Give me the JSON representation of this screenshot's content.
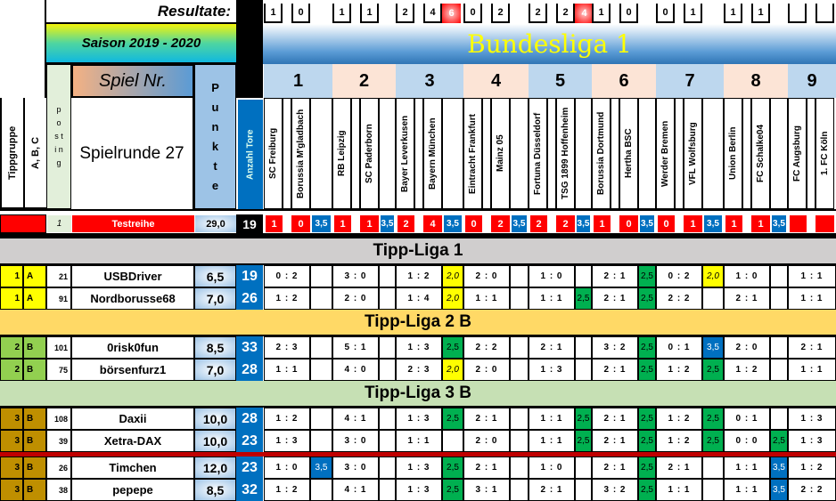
{
  "header": {
    "resultate": "Resultate:",
    "saison": "Saison 2019 - 2020",
    "liga": "Bundesliga 1",
    "spiel_nr": "Spiel Nr.",
    "spielrunde": "Spielrunde 27",
    "col_tippgruppe": "Tippgruppe",
    "col_abc": "A, B, C",
    "col_posting": "p o s t i n g",
    "col_punkte": "P u n k t e",
    "col_tore": "Anzahl Tore"
  },
  "colors": {
    "yellow": "#ffff00",
    "green": "#00b050",
    "blue": "#0070c0",
    "red": "#ff0000"
  },
  "matches": [
    {
      "nr": "1",
      "home": "SC Freiburg",
      "away": "Borussia M'gladbach",
      "result": [
        "1",
        "0"
      ],
      "total": ""
    },
    {
      "nr": "2",
      "home": "RB Leipzig",
      "away": "SC Paderborn",
      "result": [
        "1",
        "1"
      ],
      "total": ""
    },
    {
      "nr": "3",
      "home": "Bayer Leverkusen",
      "away": "Bayern München",
      "result": [
        "2",
        "4"
      ],
      "total": "6"
    },
    {
      "nr": "4",
      "home": "Eintracht Frankfurt",
      "away": "Mainz 05",
      "result": [
        "0",
        "2"
      ],
      "total": ""
    },
    {
      "nr": "5",
      "home": "Fortuna Düsseldorf",
      "away": "TSG 1899 Hoffenheim",
      "result": [
        "2",
        "2"
      ],
      "total": "4"
    },
    {
      "nr": "6",
      "home": "Borussia Dortmund",
      "away": "Hertha BSC",
      "result": [
        "1",
        "0"
      ],
      "total": ""
    },
    {
      "nr": "7",
      "home": "Werder Bremen",
      "away": "VFL Wolfsburg",
      "result": [
        "0",
        "1"
      ],
      "total": ""
    },
    {
      "nr": "8",
      "home": "Union Berlin",
      "away": "FC Schalke04",
      "result": [
        "1",
        "1"
      ],
      "total": ""
    },
    {
      "nr": "9",
      "home": "FC Augsburg",
      "away": "1. FC Köln",
      "result": [
        "",
        ""
      ],
      "total": ""
    }
  ],
  "testreihe": {
    "posting": "1",
    "name": "Testreihe",
    "punkte": "29,0",
    "tore": "19",
    "tips": [
      [
        "1",
        "0"
      ],
      [
        "1",
        "1"
      ],
      [
        "2",
        "4"
      ],
      [
        "0",
        "2"
      ],
      [
        "2",
        "2"
      ],
      [
        "1",
        "0"
      ],
      [
        "0",
        "1"
      ],
      [
        "1",
        "1"
      ],
      [
        "",
        ""
      ]
    ],
    "pts": "3,5"
  },
  "sections": [
    {
      "title": "Tipp-Liga 1",
      "bg": "#d0cece",
      "players": [
        {
          "group": "1",
          "abc": "A",
          "posting": "21",
          "name": "USBDriver",
          "punkte": "6,5",
          "tore": "19",
          "tips": [
            "0 : 2",
            "3 : 0",
            "1 : 2",
            "2 : 0",
            "1 : 0",
            "2 : 1",
            "0 : 2",
            "1 : 0",
            "1 : 1"
          ],
          "pts": [
            "",
            "",
            "2,0",
            "",
            "",
            "2,5",
            "2,0",
            ""
          ]
        },
        {
          "group": "1",
          "abc": "A",
          "posting": "91",
          "name": "Nordborusse68",
          "punkte": "7,0",
          "tore": "26",
          "tips": [
            "1 : 2",
            "2 : 0",
            "1 : 4",
            "1 : 1",
            "1 : 1",
            "2 : 1",
            "2 : 2",
            "2 : 1",
            "1 : 1"
          ],
          "pts": [
            "",
            "",
            "2,0",
            "",
            "2,5",
            "2,5",
            "",
            ""
          ]
        }
      ]
    },
    {
      "title": "Tipp-Liga 2 B",
      "bg": "#ffd966",
      "players": [
        {
          "group": "2",
          "abc": "B",
          "posting": "101",
          "name": "0risk0fun",
          "punkte": "8,5",
          "tore": "33",
          "tips": [
            "2 : 3",
            "5 : 1",
            "1 : 3",
            "2 : 2",
            "2 : 1",
            "3 : 2",
            "0 : 1",
            "2 : 0",
            "2 : 1"
          ],
          "pts": [
            "",
            "",
            "2,5",
            "",
            "",
            "2,5",
            "3,5",
            ""
          ]
        },
        {
          "group": "2",
          "abc": "B",
          "posting": "75",
          "name": "börsenfurz1",
          "punkte": "7,0",
          "tore": "28",
          "tips": [
            "1 : 1",
            "4 : 0",
            "2 : 3",
            "2 : 0",
            "1 : 3",
            "2 : 1",
            "1 : 2",
            "1 : 2",
            "1 : 1"
          ],
          "pts": [
            "",
            "",
            "2,0",
            "",
            "",
            "2,5",
            "2,5",
            ""
          ]
        }
      ]
    },
    {
      "title": "Tipp-Liga 3 B",
      "bg": "#c6e0b4",
      "players": [
        {
          "group": "3",
          "abc": "B",
          "posting": "108",
          "name": "Daxii",
          "punkte": "10,0",
          "tore": "28",
          "tips": [
            "1 : 2",
            "4 : 1",
            "1 : 3",
            "2 : 1",
            "1 : 1",
            "2 : 1",
            "1 : 2",
            "0 : 1",
            "1 : 3"
          ],
          "pts": [
            "",
            "",
            "2,5",
            "",
            "2,5",
            "2,5",
            "2,5",
            ""
          ]
        },
        {
          "group": "3",
          "abc": "B",
          "posting": "39",
          "name": "Xetra-DAX",
          "punkte": "10,0",
          "tore": "23",
          "tips": [
            "1 : 3",
            "3 : 0",
            "1 : 1",
            "2 : 0",
            "1 : 1",
            "2 : 1",
            "1 : 2",
            "0 : 0",
            "1 : 3"
          ],
          "pts": [
            "",
            "",
            "",
            "",
            "2,5",
            "2,5",
            "2,5",
            "2,5"
          ]
        },
        {
          "group": "3",
          "abc": "B",
          "posting": "26",
          "name": "Timchen",
          "punkte": "12,0",
          "tore": "23",
          "tips": [
            "1 : 0",
            "3 : 0",
            "1 : 3",
            "2 : 1",
            "1 : 0",
            "2 : 1",
            "2 : 1",
            "1 : 1",
            "1 : 2"
          ],
          "pts": [
            "3,5",
            "",
            "2,5",
            "",
            "",
            "2,5",
            "",
            "3,5"
          ]
        },
        {
          "group": "3",
          "abc": "B",
          "posting": "38",
          "name": "pepepe",
          "punkte": "8,5",
          "tore": "32",
          "tips": [
            "1 : 2",
            "4 : 1",
            "1 : 3",
            "3 : 1",
            "2 : 1",
            "3 : 2",
            "1 : 1",
            "1 : 1",
            "2 : 2"
          ],
          "pts": [
            "",
            "",
            "2,5",
            "",
            "",
            "2,5",
            "",
            "3,5"
          ]
        }
      ]
    }
  ]
}
